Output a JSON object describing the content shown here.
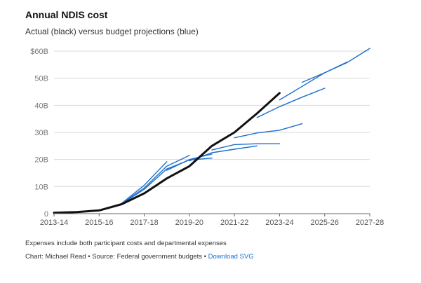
{
  "header": {
    "title": "Annual NDIS cost",
    "subtitle": "Actual (black) versus budget projections (blue)"
  },
  "footer": {
    "note": "Expenses include both participant costs and departmental expenses",
    "credit": "Chart: Michael Read • Source: Federal government budgets •",
    "link_label": "Download SVG"
  },
  "chart_data": {
    "type": "line",
    "title": "Annual NDIS cost",
    "subtitle": "Actual (black) versus budget projections (blue)",
    "x_ticks": [
      "2013-14",
      "2015-16",
      "2017-18",
      "2019-20",
      "2021-22",
      "2023-24",
      "2025-26",
      "2027-28"
    ],
    "y_ticks": [
      "0",
      "10B",
      "20B",
      "30B",
      "40B",
      "$60B"
    ],
    "y_tick_values": [
      0,
      10,
      20,
      30,
      40,
      60
    ],
    "y_labeled_gridlines": [
      0,
      10,
      20,
      30,
      40,
      50,
      60
    ],
    "y_tick_labels_all": [
      "0",
      "10B",
      "20B",
      "30B",
      "40B",
      "50B",
      "$60B"
    ],
    "xlim": [
      "2013-14",
      "2027-28"
    ],
    "ylim": [
      0,
      60
    ],
    "grid": true,
    "colors": {
      "actual": "#111111",
      "projection": "#1e6fcc",
      "grid": "#d9d9d9",
      "axis": "#666666"
    },
    "actual": {
      "x": [
        "2013-14",
        "2014-15",
        "2015-16",
        "2016-17",
        "2017-18",
        "2018-19",
        "2019-20",
        "2020-21",
        "2021-22",
        "2022-23",
        "2023-24"
      ],
      "values": [
        0.3,
        0.6,
        1.2,
        3.5,
        7.5,
        13,
        17.5,
        25,
        30,
        37,
        44.5
      ]
    },
    "projections": [
      {
        "x": [
          "2016-17",
          "2017-18",
          "2018-19"
        ],
        "values": [
          3.8,
          10.5,
          19.2
        ]
      },
      {
        "x": [
          "2016-17",
          "2017-18",
          "2018-19",
          "2019-20"
        ],
        "values": [
          3.7,
          9.5,
          17.5,
          21.5
        ]
      },
      {
        "x": [
          "2016-17",
          "2017-18",
          "2018-19",
          "2019-20",
          "2020-21"
        ],
        "values": [
          3.6,
          9,
          16.5,
          19.8,
          20.5
        ]
      },
      {
        "x": [
          "2018-19",
          "2019-20",
          "2020-21"
        ],
        "values": [
          16,
          20,
          22
        ]
      },
      {
        "x": [
          "2019-20",
          "2020-21",
          "2021-22",
          "2022-23"
        ],
        "values": [
          19.5,
          22.5,
          23.8,
          25
        ]
      },
      {
        "x": [
          "2020-21",
          "2021-22",
          "2022-23",
          "2023-24"
        ],
        "values": [
          23.5,
          25.5,
          25.8,
          25.8
        ]
      },
      {
        "x": [
          "2021-22",
          "2022-23",
          "2023-24",
          "2024-25"
        ],
        "values": [
          28,
          29.8,
          30.8,
          33.2
        ]
      },
      {
        "x": [
          "2022-23",
          "2023-24",
          "2024-25",
          "2025-26"
        ],
        "values": [
          35.5,
          39.5,
          43,
          46.3
        ]
      },
      {
        "x": [
          "2023-24",
          "2024-25",
          "2025-26",
          "2026-27"
        ],
        "values": [
          42,
          47,
          52,
          56
        ]
      },
      {
        "x": [
          "2024-25",
          "2025-26",
          "2026-27",
          "2027-28"
        ],
        "values": [
          48.5,
          52,
          55.8,
          61
        ]
      }
    ]
  }
}
